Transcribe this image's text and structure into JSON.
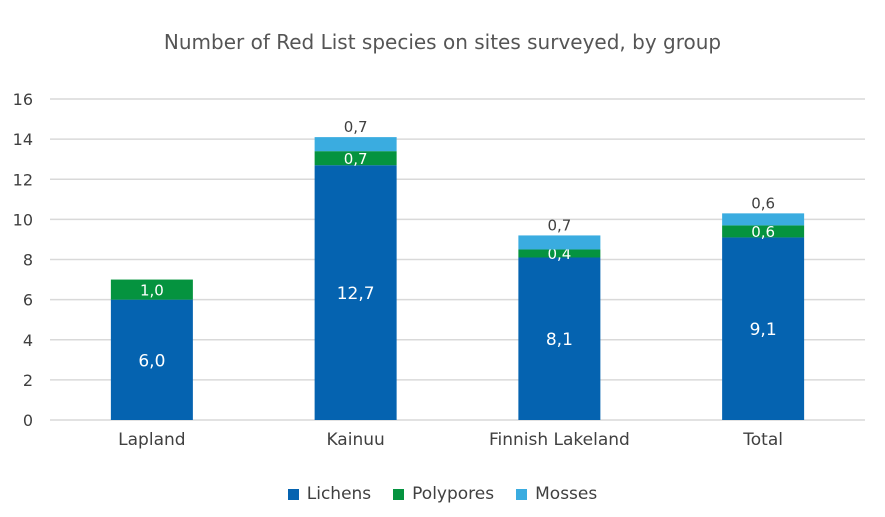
{
  "chart_data": {
    "type": "stacked-bar",
    "title": "Number of Red List species on sites surveyed, by group",
    "categories": [
      "Lapland",
      "Kainuu",
      "Finnish Lakeland",
      "Total"
    ],
    "series": [
      {
        "name": "Lichens",
        "color": "#0563b0",
        "label_color": "#ffffff",
        "values": [
          6.0,
          12.7,
          8.1,
          9.1
        ],
        "labels": [
          "6,0",
          "12,7",
          "8,1",
          "9,1"
        ]
      },
      {
        "name": "Polypores",
        "color": "#05933f",
        "label_color": "#ffffff",
        "values": [
          1.0,
          0.7,
          0.4,
          0.6
        ],
        "labels": [
          "1,0",
          "0,7",
          "0,4",
          "0,6"
        ]
      },
      {
        "name": "Mosses",
        "color": "#3aace0",
        "label_color": "#404040",
        "values": [
          null,
          0.7,
          0.7,
          0.6
        ],
        "labels": [
          "",
          "0,7",
          "0,7",
          "0,6"
        ]
      }
    ],
    "ylim": [
      0,
      16
    ],
    "yticks": [
      "0",
      "2",
      "4",
      "6",
      "8",
      "10",
      "12",
      "14",
      "16"
    ],
    "grid": true,
    "legend": "bottom"
  }
}
